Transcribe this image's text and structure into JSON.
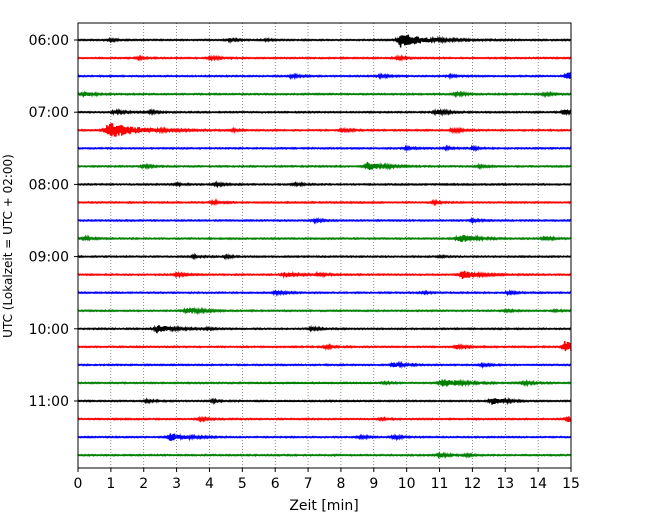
{
  "chart_data": {
    "type": "line",
    "title": "",
    "xlabel": "Zeit  [min]",
    "ylabel": "UTC (Lokalzeit = UTC + 02:00)",
    "xlim": [
      0,
      15
    ],
    "x_ticks": [
      0,
      1,
      2,
      3,
      4,
      5,
      6,
      7,
      8,
      9,
      10,
      11,
      12,
      13,
      14,
      15
    ],
    "x_tick_labels": [
      "0",
      "1",
      "2",
      "3",
      "4",
      "5",
      "6",
      "7",
      "8",
      "9",
      "10",
      "11",
      "12",
      "13",
      "14",
      "15"
    ],
    "y_tick_labels": [
      "06:00",
      "07:00",
      "08:00",
      "09:00",
      "10:00",
      "11:00"
    ],
    "grid": "vertical dotted at each minute",
    "trace_interval_min": 15,
    "trace_colors": [
      "#000000",
      "#ff0000",
      "#0000ff",
      "#008000"
    ],
    "traces": [
      {
        "start": "06:00",
        "events": [
          [
            1.0,
            0.25
          ],
          [
            4.6,
            0.25
          ],
          [
            5.7,
            0.2
          ],
          [
            9.8,
            1.6
          ]
        ]
      },
      {
        "start": "06:15",
        "events": [
          [
            1.8,
            0.3
          ],
          [
            4.0,
            0.35
          ],
          [
            9.7,
            0.35
          ]
        ]
      },
      {
        "start": "06:30",
        "events": [
          [
            6.5,
            0.35
          ],
          [
            9.2,
            0.3
          ],
          [
            11.3,
            0.25
          ],
          [
            14.9,
            0.9
          ]
        ]
      },
      {
        "start": "06:45",
        "events": [
          [
            0.2,
            0.45
          ],
          [
            11.5,
            0.4
          ],
          [
            14.2,
            0.3
          ]
        ]
      },
      {
        "start": "07:00",
        "events": [
          [
            1.1,
            0.45
          ],
          [
            2.2,
            0.3
          ],
          [
            10.9,
            0.55
          ],
          [
            14.8,
            0.55
          ]
        ]
      },
      {
        "start": "07:15",
        "events": [
          [
            0.9,
            1.9
          ],
          [
            4.7,
            0.2
          ],
          [
            8.0,
            0.35
          ],
          [
            11.4,
            0.4
          ]
        ]
      },
      {
        "start": "07:30",
        "events": [
          [
            10.0,
            0.3
          ],
          [
            11.2,
            0.25
          ],
          [
            12.0,
            0.25
          ]
        ]
      },
      {
        "start": "07:45",
        "events": [
          [
            2.0,
            0.35
          ],
          [
            8.8,
            0.9
          ],
          [
            12.2,
            0.3
          ]
        ]
      },
      {
        "start": "08:00",
        "events": [
          [
            3.0,
            0.2
          ],
          [
            4.2,
            0.3
          ],
          [
            6.6,
            0.3
          ]
        ]
      },
      {
        "start": "08:15",
        "events": [
          [
            4.1,
            0.35
          ],
          [
            10.8,
            0.3
          ]
        ]
      },
      {
        "start": "08:30",
        "events": [
          [
            7.2,
            0.3
          ],
          [
            12.0,
            0.25
          ]
        ]
      },
      {
        "start": "08:45",
        "events": [
          [
            0.2,
            0.3
          ],
          [
            11.6,
            0.9
          ],
          [
            14.2,
            0.35
          ]
        ]
      },
      {
        "start": "09:00",
        "events": [
          [
            3.5,
            0.25
          ],
          [
            4.5,
            0.25
          ],
          [
            11.0,
            0.15
          ]
        ]
      },
      {
        "start": "09:15",
        "events": [
          [
            3.0,
            0.35
          ],
          [
            6.3,
            0.55
          ],
          [
            7.3,
            0.35
          ],
          [
            11.7,
            0.9
          ]
        ]
      },
      {
        "start": "09:30",
        "events": [
          [
            6.0,
            0.4
          ],
          [
            10.5,
            0.2
          ],
          [
            13.1,
            0.3
          ]
        ]
      },
      {
        "start": "09:45",
        "events": [
          [
            3.3,
            0.75
          ],
          [
            13.0,
            0.25
          ],
          [
            14.5,
            0.2
          ]
        ]
      },
      {
        "start": "10:00",
        "events": [
          [
            2.4,
            0.9
          ],
          [
            3.9,
            0.2
          ],
          [
            7.1,
            0.3
          ]
        ]
      },
      {
        "start": "10:15",
        "events": [
          [
            7.5,
            0.35
          ],
          [
            11.5,
            0.45
          ],
          [
            14.8,
            1.2
          ]
        ]
      },
      {
        "start": "10:30",
        "events": [
          [
            9.6,
            0.5
          ],
          [
            12.3,
            0.25
          ]
        ]
      },
      {
        "start": "10:45",
        "events": [
          [
            11.1,
            1.0
          ],
          [
            13.6,
            0.35
          ],
          [
            9.3,
            0.2
          ]
        ]
      },
      {
        "start": "11:00",
        "events": [
          [
            2.1,
            0.3
          ],
          [
            4.1,
            0.25
          ],
          [
            12.6,
            0.75
          ]
        ]
      },
      {
        "start": "11:15",
        "events": [
          [
            3.7,
            0.3
          ],
          [
            9.2,
            0.2
          ],
          [
            14.9,
            0.55
          ]
        ]
      },
      {
        "start": "11:30",
        "events": [
          [
            2.8,
            0.9
          ],
          [
            8.6,
            0.3
          ],
          [
            9.6,
            0.35
          ]
        ]
      },
      {
        "start": "11:45",
        "events": [
          [
            11.0,
            0.4
          ],
          [
            11.8,
            0.2
          ]
        ]
      }
    ]
  }
}
